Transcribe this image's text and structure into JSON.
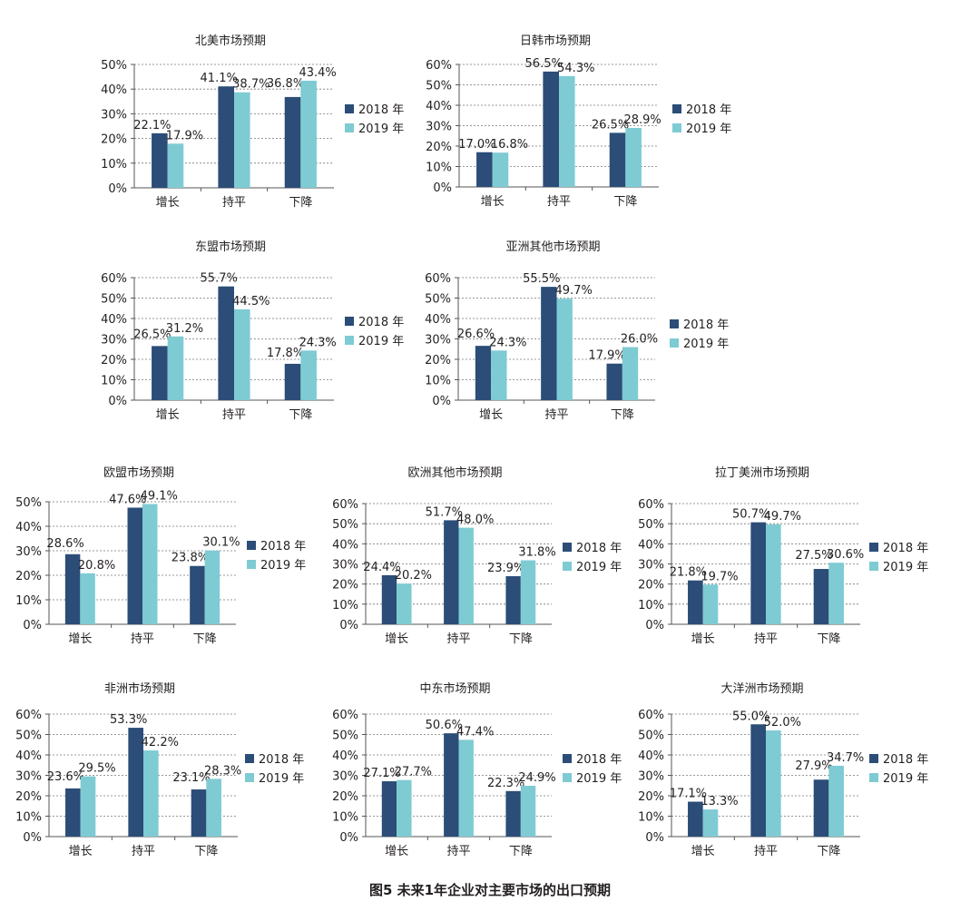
{
  "colors": {
    "s2018": "#2b4d77",
    "s2019": "#7ecbd3",
    "grid": "#777777",
    "axis": "#555555",
    "text": "#231f20"
  },
  "legend": [
    "2018 年",
    "2019 年"
  ],
  "caption": "图5  未来1年企业对主要市场的出口预期",
  "chart_data": [
    {
      "type": "bar",
      "title": "北美市场预期",
      "categories": [
        "增长",
        "持平",
        "下降"
      ],
      "ylim": [
        0,
        50
      ],
      "y_ticks": [
        "0%",
        "10%",
        "20%",
        "30%",
        "40%",
        "50%"
      ],
      "series": [
        {
          "name": "2018 年",
          "values": [
            22.1,
            41.1,
            36.8
          ]
        },
        {
          "name": "2019 年",
          "values": [
            17.9,
            38.7,
            43.4
          ]
        }
      ],
      "labels_2018": [
        "22.1%",
        "41.1%",
        "36.8%"
      ],
      "labels_2019": [
        "17.9%",
        "38.7%",
        "43.4%"
      ],
      "grid": true,
      "legend_position": "right"
    },
    {
      "type": "bar",
      "title": "日韩市场预期",
      "categories": [
        "增长",
        "持平",
        "下降"
      ],
      "ylim": [
        0,
        60
      ],
      "y_ticks": [
        "0%",
        "10%",
        "20%",
        "30%",
        "40%",
        "50%",
        "60%"
      ],
      "series": [
        {
          "name": "2018 年",
          "values": [
            17.0,
            56.5,
            26.5
          ]
        },
        {
          "name": "2019 年",
          "values": [
            16.8,
            54.3,
            28.9
          ]
        }
      ],
      "labels_2018": [
        "17.0%",
        "56.5%",
        "26.5%"
      ],
      "labels_2019": [
        "16.8%",
        "54.3%",
        "28.9%"
      ],
      "grid": true,
      "legend_position": "right"
    },
    {
      "type": "bar",
      "title": "东盟市场预期",
      "categories": [
        "增长",
        "持平",
        "下降"
      ],
      "ylim": [
        0,
        60
      ],
      "y_ticks": [
        "0%",
        "10%",
        "20%",
        "30%",
        "40%",
        "50%",
        "60%"
      ],
      "series": [
        {
          "name": "2018 年",
          "values": [
            26.5,
            55.7,
            17.8
          ]
        },
        {
          "name": "2019 年",
          "values": [
            31.2,
            44.5,
            24.3
          ]
        }
      ],
      "labels_2018": [
        "26.5%",
        "55.7%",
        "17.8%"
      ],
      "labels_2019": [
        "31.2%",
        "44.5%",
        "24.3%"
      ],
      "grid": true,
      "legend_position": "right"
    },
    {
      "type": "bar",
      "title": "亚洲其他市场预期",
      "categories": [
        "增长",
        "持平",
        "下降"
      ],
      "ylim": [
        0,
        60
      ],
      "y_ticks": [
        "0%",
        "10%",
        "20%",
        "30%",
        "40%",
        "50%",
        "60%"
      ],
      "series": [
        {
          "name": "2018 年",
          "values": [
            26.6,
            55.5,
            17.9
          ]
        },
        {
          "name": "2019 年",
          "values": [
            24.3,
            49.7,
            26.0
          ]
        }
      ],
      "labels_2018": [
        "26.6%",
        "55.5%",
        "17.9%"
      ],
      "labels_2019": [
        "24.3%",
        "49.7%",
        "26.0%"
      ],
      "grid": true,
      "legend_position": "right"
    },
    {
      "type": "bar",
      "title": "欧盟市场预期",
      "categories": [
        "增长",
        "持平",
        "下降"
      ],
      "ylim": [
        0,
        50
      ],
      "y_ticks": [
        "0%",
        "10%",
        "20%",
        "30%",
        "40%",
        "50%"
      ],
      "series": [
        {
          "name": "2018 年",
          "values": [
            28.6,
            47.6,
            23.8
          ]
        },
        {
          "name": "2019 年",
          "values": [
            20.8,
            49.1,
            30.1
          ]
        }
      ],
      "labels_2018": [
        "28.6%",
        "47.6%",
        "23.8%"
      ],
      "labels_2019": [
        "20.8%",
        "49.1%",
        "30.1%"
      ],
      "grid": true,
      "legend_position": "right"
    },
    {
      "type": "bar",
      "title": "欧洲其他市场预期",
      "categories": [
        "增长",
        "持平",
        "下降"
      ],
      "ylim": [
        0,
        60
      ],
      "y_ticks": [
        "0%",
        "10%",
        "20%",
        "30%",
        "40%",
        "50%",
        "60%"
      ],
      "series": [
        {
          "name": "2018 年",
          "values": [
            24.4,
            51.7,
            23.9
          ]
        },
        {
          "name": "2019 年",
          "values": [
            20.2,
            48.0,
            31.8
          ]
        }
      ],
      "labels_2018": [
        "24.4%",
        "51.7%",
        "23.9%"
      ],
      "labels_2019": [
        "20.2%",
        "48.0%",
        "31.8%"
      ],
      "grid": true,
      "legend_position": "right"
    },
    {
      "type": "bar",
      "title": "拉丁美洲市场预期",
      "categories": [
        "增长",
        "持平",
        "下降"
      ],
      "ylim": [
        0,
        60
      ],
      "y_ticks": [
        "0%",
        "10%",
        "20%",
        "30%",
        "40%",
        "50%",
        "60%"
      ],
      "series": [
        {
          "name": "2018 年",
          "values": [
            21.8,
            50.7,
            27.5
          ]
        },
        {
          "name": "2019 年",
          "values": [
            19.7,
            49.7,
            30.6
          ]
        }
      ],
      "labels_2018": [
        "21.8%",
        "50.7%",
        "27.5%"
      ],
      "labels_2019": [
        "19.7%",
        "49.7%",
        "30.6%"
      ],
      "grid": true,
      "legend_position": "right"
    },
    {
      "type": "bar",
      "title": "非洲市场预期",
      "categories": [
        "增长",
        "持平",
        "下降"
      ],
      "ylim": [
        0,
        60
      ],
      "y_ticks": [
        "0%",
        "10%",
        "20%",
        "30%",
        "40%",
        "50%",
        "60%"
      ],
      "series": [
        {
          "name": "2018 年",
          "values": [
            23.6,
            53.3,
            23.1
          ]
        },
        {
          "name": "2019 年",
          "values": [
            29.5,
            42.2,
            28.3
          ]
        }
      ],
      "labels_2018": [
        "23.6%",
        "53.3%",
        "23.1%"
      ],
      "labels_2019": [
        "29.5%",
        "42.2%",
        "28.3%"
      ],
      "grid": true,
      "legend_position": "right"
    },
    {
      "type": "bar",
      "title": "中东市场预期",
      "categories": [
        "增长",
        "持平",
        "下降"
      ],
      "ylim": [
        0,
        60
      ],
      "y_ticks": [
        "0%",
        "10%",
        "20%",
        "30%",
        "40%",
        "50%",
        "60%"
      ],
      "series": [
        {
          "name": "2018 年",
          "values": [
            27.1,
            50.6,
            22.3
          ]
        },
        {
          "name": "2019 年",
          "values": [
            27.7,
            47.4,
            24.9
          ]
        }
      ],
      "labels_2018": [
        "27.1%",
        "50.6%",
        "22.3%"
      ],
      "labels_2019": [
        "27.7%",
        "47.4%",
        "24.9%"
      ],
      "grid": true,
      "legend_position": "right"
    },
    {
      "type": "bar",
      "title": "大洋洲市场预期",
      "categories": [
        "增长",
        "持平",
        "下降"
      ],
      "ylim": [
        0,
        60
      ],
      "y_ticks": [
        "0%",
        "10%",
        "20%",
        "30%",
        "40%",
        "50%",
        "60%"
      ],
      "series": [
        {
          "name": "2018 年",
          "values": [
            17.1,
            55.0,
            27.9
          ]
        },
        {
          "name": "2019 年",
          "values": [
            13.3,
            52.0,
            34.7
          ]
        }
      ],
      "labels_2018": [
        "17.1%",
        "55.0%",
        "27.9%"
      ],
      "labels_2019": [
        "13.3%",
        "52.0%",
        "34.7%"
      ],
      "grid": true,
      "legend_position": "right"
    }
  ]
}
